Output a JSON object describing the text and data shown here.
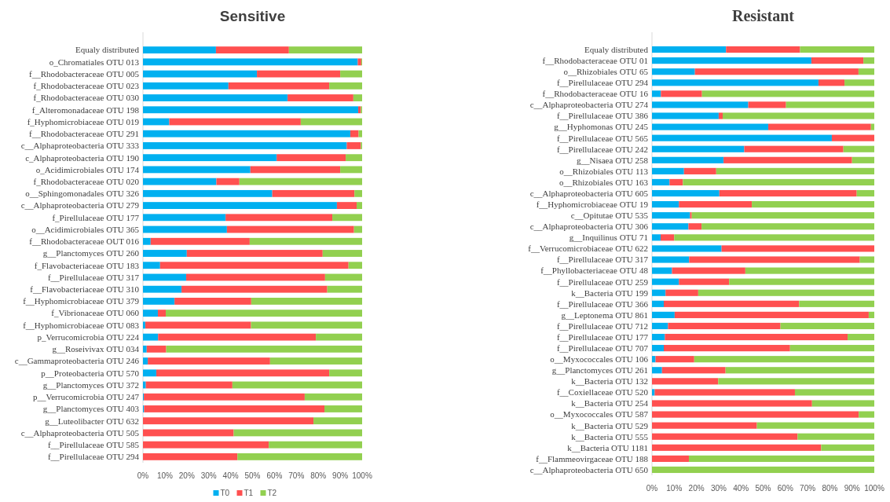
{
  "chart_data": [
    {
      "type": "bar",
      "title": "Sensitive",
      "orientation": "horizontal",
      "stacked": true,
      "legend": "bottom",
      "categories": [
        "Equaly distributed",
        "o_Chromatiales OTU 013",
        "f__Rhodobacteraceae OTU 005",
        "f_Rhodobacteraceae OTU 023",
        "f_Rhodobacteraceae OTU 030",
        "f_Alteromonadaceae OTU 198",
        "f_Hyphomicrobiaceae OTU 019",
        "f__Rhodobacteraceae OTU 291",
        "c__Alphaproteobacteria OTU 333",
        "c_Alphaproteobacteria OTU 190",
        "o_Acidimicrobiales OTU 174",
        "f_Rhodobacteraceae OTU 020",
        "o__Sphingomonadales OTU 326",
        "c__Alphaproteobacteria OTU 279",
        "f_Pirellulaceae OTU 177",
        "o__Acidimicrobiales OTU 365",
        "f__Rhodobacteraceae OUT 016",
        "g__Planctomyces OTU 260",
        "f_Flavobacteriaceae OTU 183",
        "f__Pirellulaceae OTU 317",
        "f__Flavobacteriaceae OTU 310",
        "f__Hyphomicrobiaceae OTU 379",
        "f_Vibrionaceae OTU 060",
        "f__Hyphomicrobiaceae OTU 083",
        "p_Verrucomicrobia OTU 224",
        "g__Roseivivax OTU 034",
        "c__Gammaproteobacteria OTU 246",
        "p__Proteobacteria OTU 570",
        "g__Planctomyces OTU 372",
        "p__Verrucomicrobia OTU 247",
        "g__Planctomyces OTU 403",
        "g__Luteolibacter OTU 632",
        "c__Alphaproteobacteria OTU 505",
        "f__Pirellulaceae OTU 585",
        "f__Pirellulaceae OTU 294"
      ],
      "series": [
        {
          "name": "T0",
          "color": "#00b0f0",
          "values": [
            33.3,
            98,
            52,
            39,
            66,
            98.2,
            12,
            94.6,
            93,
            61,
            49,
            33.5,
            59,
            88.5,
            37.7,
            38.3,
            3.5,
            20,
            7.8,
            19.7,
            17.6,
            14.4,
            6.8,
            1.1,
            6.9,
            1.7,
            2.2,
            6.1,
            1.3,
            0.4,
            0.5,
            0,
            0,
            0,
            0
          ]
        },
        {
          "name": "T1",
          "color": "#ff5050",
          "values": [
            33.3,
            1.6,
            38,
            46,
            30,
            1.2,
            60,
            3.8,
            6.4,
            31.5,
            41,
            10.5,
            37.5,
            9,
            48.7,
            58,
            45.2,
            62,
            86,
            63.4,
            66.5,
            35,
            3.6,
            48.2,
            72,
            8.9,
            55.8,
            78.9,
            39.5,
            73.4,
            82.3,
            77.8,
            41.4,
            57.4,
            43.1
          ]
        },
        {
          "name": "T2",
          "color": "#92d050",
          "values": [
            33.4,
            0.4,
            10,
            15,
            4,
            0.6,
            28,
            1.6,
            0.6,
            7.5,
            10,
            56,
            3.5,
            2.5,
            13.6,
            3.7,
            51.3,
            18,
            6.2,
            16.9,
            15.9,
            50.6,
            89.6,
            50.7,
            21.1,
            89.4,
            42,
            15,
            59.2,
            26.2,
            17.2,
            22.2,
            58.6,
            42.6,
            56.9
          ]
        }
      ],
      "xlim": [
        0,
        100
      ],
      "xticks": [
        {
          "value": 0,
          "label": "0%"
        },
        {
          "value": 10,
          "label": "10%"
        },
        {
          "value": 20,
          "label": "20%"
        },
        {
          "value": 30,
          "label": "30%"
        },
        {
          "value": 40,
          "label": "40%"
        },
        {
          "value": 50,
          "label": "50%"
        },
        {
          "value": 60,
          "label": "60%"
        },
        {
          "value": 70,
          "label": "70%"
        },
        {
          "value": 80,
          "label": "80%"
        },
        {
          "value": 90,
          "label": "90%"
        },
        {
          "value": 100,
          "label": "100%"
        }
      ]
    },
    {
      "type": "bar",
      "title": "Resistant",
      "orientation": "horizontal",
      "stacked": true,
      "categories": [
        "Equaly distributed",
        "f__Rhodobacteraceae OTU 01",
        "o__Rhizobiales OTU 65",
        "f__Pirellulaceae OTU 294",
        "f__Rhodobacteraceae OTU 16",
        "c__Alphaproteobacteria OTU 274",
        "f__Pirellulaceae OTU 386",
        "g__Hyphomonas OTU 245",
        "f__Pirellulaceae OTU 565",
        "f__Pirellulaceae OTU 242",
        "g__Nisaea OTU 258",
        "o__Rhizobiales OTU 113",
        "o__Rhizobiales OTU 163",
        "c__Alphaproteobacteria OTU 605",
        "f__Hyphomicrobiaceae OTU 19",
        "c__Opitutae OTU 535",
        "c__Alphaproteobacteria OTU 306",
        "g__Inquilinus OTU 71",
        "f__Verrucomicrobiaceae OTU 622",
        "f__Pirellulaceae OTU 317",
        "f__Phyllobacteriaceae OTU 48",
        "f__Pirellulaceae OTU 259",
        "k__Bacteria OTU 199",
        "f__Pirellulaceae OTU 366",
        "g__Leptonema OTU 861",
        "f__Pirellulaceae OTU 712",
        "f__Pirellulaceae OTU 177",
        "f__Pirellulaceae OTU 707",
        "o__Myxococcales OTU 106",
        "g__Planctomyces OTU 261",
        "k__Bacteria OTU 132",
        "f__Coxiellaceae OTU 520",
        "k__Bacteria OTU 254",
        "o__Myxococcales OTU 587",
        "k__Bacteria OTU 529",
        "k__Bacteria OTU 555",
        "k__Bacteria OTU 1181",
        "f__Flammeovirgaceae OTU 188",
        "c__Alphaproteobacteria OTU 650"
      ],
      "series": [
        {
          "color": "#00b0f0",
          "values": [
            33.3,
            71.7,
            19.3,
            74.9,
            4,
            43.3,
            30,
            52.3,
            80.9,
            41.5,
            32.2,
            14.4,
            7.9,
            30.3,
            12.1,
            17.1,
            16.4,
            3.9,
            31.3,
            16.7,
            9,
            12.1,
            6.1,
            5.3,
            10.2,
            7.2,
            5.8,
            5.3,
            1.6,
            4.5,
            0,
            1.2,
            0,
            0,
            0,
            0,
            0,
            0,
            0
          ]
        },
        {
          "color": "#ff5050",
          "values": [
            33.3,
            23.4,
            73.6,
            11.7,
            18.5,
            17,
            1.8,
            46.2,
            19.1,
            44.6,
            57.8,
            14.5,
            6,
            61.8,
            32.8,
            0.8,
            5.9,
            6.1,
            68.7,
            76.8,
            33,
            22.6,
            14.7,
            60.9,
            87.3,
            50.6,
            82.2,
            56.8,
            17.4,
            28.6,
            29.8,
            63.1,
            72,
            93,
            47.2,
            65.5,
            76.1,
            16.6,
            0
          ]
        },
        {
          "color": "#92d050",
          "values": [
            33.4,
            4.9,
            7.1,
            13.4,
            77.5,
            39.7,
            68.2,
            1.5,
            0,
            13.9,
            10,
            71.1,
            86.1,
            7.9,
            55.1,
            82.1,
            77.7,
            90,
            0,
            6.5,
            58,
            65.3,
            79.2,
            33.8,
            2.5,
            42.2,
            12,
            37.9,
            81,
            66.9,
            70.2,
            35.7,
            28,
            7,
            52.8,
            34.5,
            23.9,
            83.4,
            100
          ]
        }
      ],
      "xlim": [
        0,
        100
      ],
      "xticks": [
        {
          "value": 0,
          "label": "0%"
        },
        {
          "value": 10,
          "label": "10%"
        },
        {
          "value": 20,
          "label": "20%"
        },
        {
          "value": 30,
          "label": "30%"
        },
        {
          "value": 40,
          "label": "40%"
        },
        {
          "value": 50,
          "label": "50%"
        },
        {
          "value": 60,
          "label": "60%"
        },
        {
          "value": 70,
          "label": "70%"
        },
        {
          "value": 80,
          "label": "80%"
        },
        {
          "value": 90,
          "label": "90%"
        },
        {
          "value": 100,
          "label": "100%"
        }
      ]
    }
  ]
}
